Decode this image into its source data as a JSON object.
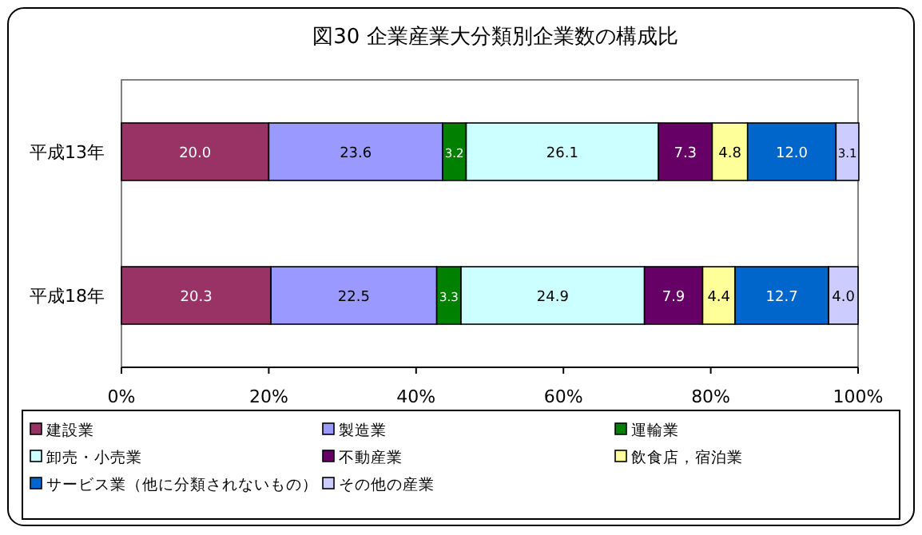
{
  "chart_data": {
    "type": "bar",
    "title": "図30  企業産業大分類別企業数の構成比",
    "orientation": "horizontal",
    "stacked": true,
    "categories": [
      "平成13年",
      "平成18年"
    ],
    "series": [
      {
        "name": "建設業",
        "color": "#993366",
        "values": [
          20.0,
          20.3
        ],
        "value_labels": [
          "20.0",
          "20.3"
        ]
      },
      {
        "name": "製造業",
        "color": "#9999ff",
        "values": [
          23.6,
          22.5
        ],
        "value_labels": [
          "23.6",
          "22.5"
        ]
      },
      {
        "name": "運輸業",
        "color": "#008000",
        "values": [
          3.2,
          3.3
        ],
        "value_labels": [
          "3.2",
          "3.3"
        ]
      },
      {
        "name": "卸売・小売業",
        "color": "#ccffff",
        "values": [
          26.1,
          24.9
        ],
        "value_labels": [
          "26.1",
          "24.9"
        ]
      },
      {
        "name": "不動産業",
        "color": "#660066",
        "values": [
          7.3,
          7.9
        ],
        "value_labels": [
          "7.3",
          "7.9"
        ]
      },
      {
        "name": "飲食店，宿泊業",
        "color": "#ffff99",
        "values": [
          4.8,
          4.4
        ],
        "value_labels": [
          "4.8",
          "4.4"
        ]
      },
      {
        "name": "サービス業（他に分類されないもの）",
        "color": "#0066cc",
        "values": [
          12.0,
          12.7
        ],
        "value_labels": [
          "12.0",
          "12.7"
        ]
      },
      {
        "name": "その他の産業",
        "color": "#ccccff",
        "values": [
          3.1,
          4.0
        ],
        "value_labels": [
          "3.1",
          "4.0"
        ]
      }
    ],
    "xlim": [
      0,
      100
    ],
    "xticks": [
      {
        "value": 0,
        "label": "0%"
      },
      {
        "value": 20,
        "label": "20%"
      },
      {
        "value": 40,
        "label": "40%"
      },
      {
        "value": 60,
        "label": "60%"
      },
      {
        "value": 80,
        "label": "80%"
      },
      {
        "value": 100,
        "label": "100%"
      }
    ],
    "legend": "bottom",
    "grid": false
  }
}
